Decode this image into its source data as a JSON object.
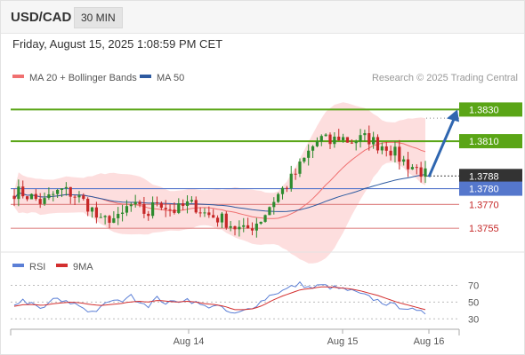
{
  "header": {
    "symbol": "USD/CAD",
    "interval": "30 MIN"
  },
  "timestamp": "Friday, August 15, 2025 1:08:59 PM CET",
  "colors": {
    "bull": "#2e8b2e",
    "bear": "#c62828",
    "ma20": "#f07070",
    "ma50": "#2d5aa0",
    "band": "#fcd3d3",
    "resistance": "#5aa516",
    "support": "#e08a8a",
    "current": "#5577cc",
    "arrow": "#2f66b0",
    "rsi": "#5b7fd6",
    "rsi_ma": "#d32f2f"
  },
  "watermark": "Research © 2025 Trading Central",
  "chart_data": {
    "type": "candlestick",
    "legend": [
      {
        "label": "MA 20 + Bollinger Bands",
        "color": "#f07070"
      },
      {
        "label": "MA 50",
        "color": "#2d5aa0"
      }
    ],
    "y_range": [
      1.3745,
      1.3842
    ],
    "x_labels": [
      "Aug 14",
      "Aug 15",
      "Aug 16"
    ],
    "price_levels": [
      {
        "value": 1.383,
        "label": "1.3830",
        "kind": "resistance"
      },
      {
        "value": 1.381,
        "label": "1.3810",
        "kind": "resistance"
      },
      {
        "value": 1.3788,
        "label": "1.3788",
        "kind": "last"
      },
      {
        "value": 1.378,
        "label": "1.3780",
        "kind": "pivot"
      },
      {
        "value": 1.377,
        "label": "1.3770",
        "kind": "support"
      },
      {
        "value": 1.3755,
        "label": "1.3755",
        "kind": "support"
      }
    ],
    "forecast_target": 1.383,
    "anchors": [
      1.3778,
      1.3777,
      1.3774,
      1.3771,
      1.3776,
      1.3779,
      1.3777,
      1.3773,
      1.3768,
      1.3758,
      1.3762,
      1.376,
      1.377,
      1.3767,
      1.3764,
      1.3773,
      1.3768,
      1.3766,
      1.377,
      1.3769,
      1.3764,
      1.3762,
      1.376,
      1.3756,
      1.3753,
      1.3757,
      1.3762,
      1.3772,
      1.3779,
      1.3786,
      1.3795,
      1.3805,
      1.3812,
      1.3809,
      1.3813,
      1.381,
      1.3811,
      1.3812,
      1.3808,
      1.3807,
      1.3801,
      1.3796,
      1.3793,
      1.3789
    ],
    "rsi": {
      "legend": [
        {
          "label": "RSI",
          "color": "#5b7fd6"
        },
        {
          "label": "9MA",
          "color": "#d32f2f"
        }
      ],
      "levels": [
        70,
        50,
        30
      ],
      "range": [
        25,
        80
      ],
      "rsi_anchors": [
        48,
        52,
        46,
        40,
        55,
        50,
        49,
        45,
        38,
        42,
        52,
        50,
        58,
        52,
        46,
        55,
        48,
        51,
        54,
        49,
        44,
        47,
        40,
        35,
        39,
        45,
        52,
        60,
        63,
        68,
        72,
        66,
        70,
        68,
        66,
        64,
        60,
        56,
        52,
        48,
        45,
        44,
        38,
        37
      ],
      "ma_anchors": [
        45,
        47,
        47,
        46,
        48,
        49,
        50,
        49,
        47,
        46,
        47,
        48,
        50,
        51,
        50,
        52,
        51,
        50,
        51,
        50,
        48,
        47,
        45,
        41,
        41,
        42,
        46,
        52,
        57,
        61,
        65,
        66,
        68,
        68,
        67,
        66,
        64,
        61,
        58,
        54,
        50,
        47,
        44,
        41
      ]
    }
  }
}
